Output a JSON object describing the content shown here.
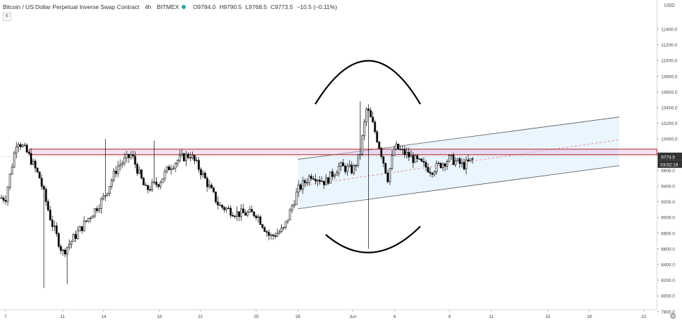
{
  "header": {
    "symbol": "Bitcoin / US Dollar Perpetual Inverse Swap Contract",
    "interval": "4h",
    "exchange": "BITMEX",
    "ohlc": [
      "O9784.0",
      "H9790.5",
      "L9768.5",
      "C9773.5",
      "−10.5 (−0.11%)"
    ],
    "interval_badge": "6"
  },
  "price_scale": {
    "currency": "USD",
    "labels": [
      "11400.0",
      "11200.0",
      "11000.0",
      "10800.0",
      "10600.0",
      "10400.0",
      "10200.0",
      "10000.0",
      "9800.0",
      "9600.0",
      "9400.0",
      "9200.0",
      "9000.0",
      "8800.0",
      "8600.0",
      "8400.0",
      "8200.0",
      "8000.0",
      "7800.0"
    ],
    "last_price": "9773.5",
    "countdown": "03:52:19"
  },
  "time_axis": {
    "labels": [
      "7",
      "11",
      "14",
      "18",
      "21",
      "25",
      "28",
      "Jun",
      "4",
      "8",
      "11",
      "15",
      "18",
      "22"
    ]
  },
  "colors": {
    "up": "#26a69a",
    "down": "#ef5350",
    "candle_body": "#000000",
    "zone_border": "#b71c1c",
    "zone_fill": "#e1bee7",
    "channel_fill": "#e3f2fd",
    "channel_line": "#555555",
    "price_tag": "#333333"
  },
  "chart_data": {
    "type": "candlestick",
    "symbol": "Bitcoin / US Dollar Perpetual Inverse Swap Contract",
    "timeframe": "4h",
    "y_range": [
      7650,
      11600
    ],
    "resistance_zone": [
      9800,
      9870
    ],
    "channel": {
      "upper": [
        {
          "x": "28",
          "y": 9740
        },
        {
          "x": "22",
          "y": 10280
        }
      ],
      "middle": [
        {
          "x": "28",
          "y": 9400
        },
        {
          "x": "22",
          "y": 9990
        }
      ],
      "lower": [
        {
          "x": "28",
          "y": 9110
        },
        {
          "x": "22",
          "y": 9660
        }
      ]
    },
    "anchors": [
      {
        "x": "7",
        "y": 9250
      },
      {
        "x": "7",
        "y": 10000
      },
      {
        "x": "7",
        "y": 9800
      },
      {
        "x": "7",
        "y": 9500
      },
      {
        "x": "7",
        "y": 8950
      },
      {
        "x": "11",
        "y": 8550
      },
      {
        "x": "11",
        "y": 8900
      },
      {
        "x": "14",
        "y": 9250
      },
      {
        "x": "14",
        "y": 9650
      },
      {
        "x": "14",
        "y": 9800
      },
      {
        "x": "14",
        "y": 9350
      },
      {
        "x": "18",
        "y": 9450
      },
      {
        "x": "18",
        "y": 9650
      },
      {
        "x": "18",
        "y": 9750
      },
      {
        "x": "18",
        "y": 9800
      },
      {
        "x": "21",
        "y": 9600
      },
      {
        "x": "21",
        "y": 9150
      },
      {
        "x": "21",
        "y": 9050
      },
      {
        "x": "25",
        "y": 9050
      },
      {
        "x": "25",
        "y": 8750
      },
      {
        "x": "25",
        "y": 8850
      },
      {
        "x": "28",
        "y": 9350
      },
      {
        "x": "28",
        "y": 9550
      },
      {
        "x": "28",
        "y": 9450
      },
      {
        "x": "28",
        "y": 9650
      },
      {
        "x": "Jun",
        "y": 9600
      },
      {
        "x": "Jun",
        "y": 9800
      },
      {
        "x": "Jun",
        "y": 10400
      },
      {
        "x": "Jun",
        "y": 10150
      },
      {
        "x": "Jun",
        "y": 9850
      },
      {
        "x": "Jun",
        "y": 9500
      },
      {
        "x": "4",
        "y": 9900
      },
      {
        "x": "4",
        "y": 9750
      },
      {
        "x": "4",
        "y": 9600
      },
      {
        "x": "8",
        "y": 9750
      },
      {
        "x": "8",
        "y": 9660
      },
      {
        "x": "8",
        "y": 9775
      }
    ]
  }
}
